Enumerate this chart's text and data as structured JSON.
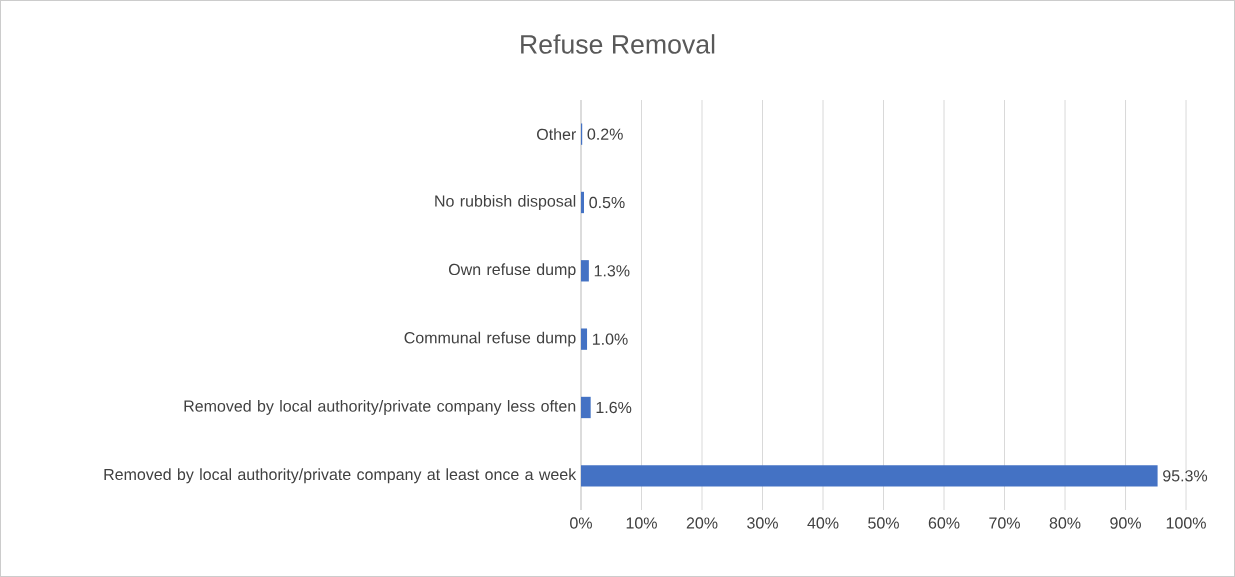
{
  "chart_data": {
    "type": "bar",
    "orientation": "horizontal",
    "title": "Refuse Removal",
    "categories": [
      "Other",
      "No rubbish disposal",
      "Own refuse dump",
      "Communal refuse dump",
      "Removed by local authority/private company less often",
      "Removed by local authority/private company at least once a week"
    ],
    "values": [
      0.2,
      0.5,
      1.3,
      1.0,
      1.6,
      95.3
    ],
    "value_labels": [
      "0.2%",
      "0.5%",
      "1.3%",
      "1.0%",
      "1.6%",
      "95.3%"
    ],
    "color": "#4472c4",
    "xlim": [
      0,
      100
    ],
    "xticks": [
      {
        "value": 0,
        "label": "0%"
      },
      {
        "value": 10,
        "label": "10%"
      },
      {
        "value": 20,
        "label": "20%"
      },
      {
        "value": 30,
        "label": "30%"
      },
      {
        "value": 40,
        "label": "40%"
      },
      {
        "value": 50,
        "label": "50%"
      },
      {
        "value": 60,
        "label": "60%"
      },
      {
        "value": 70,
        "label": "70%"
      },
      {
        "value": 80,
        "label": "80%"
      },
      {
        "value": 90,
        "label": "90%"
      },
      {
        "value": 100,
        "label": "100%"
      }
    ],
    "grid": "x"
  }
}
